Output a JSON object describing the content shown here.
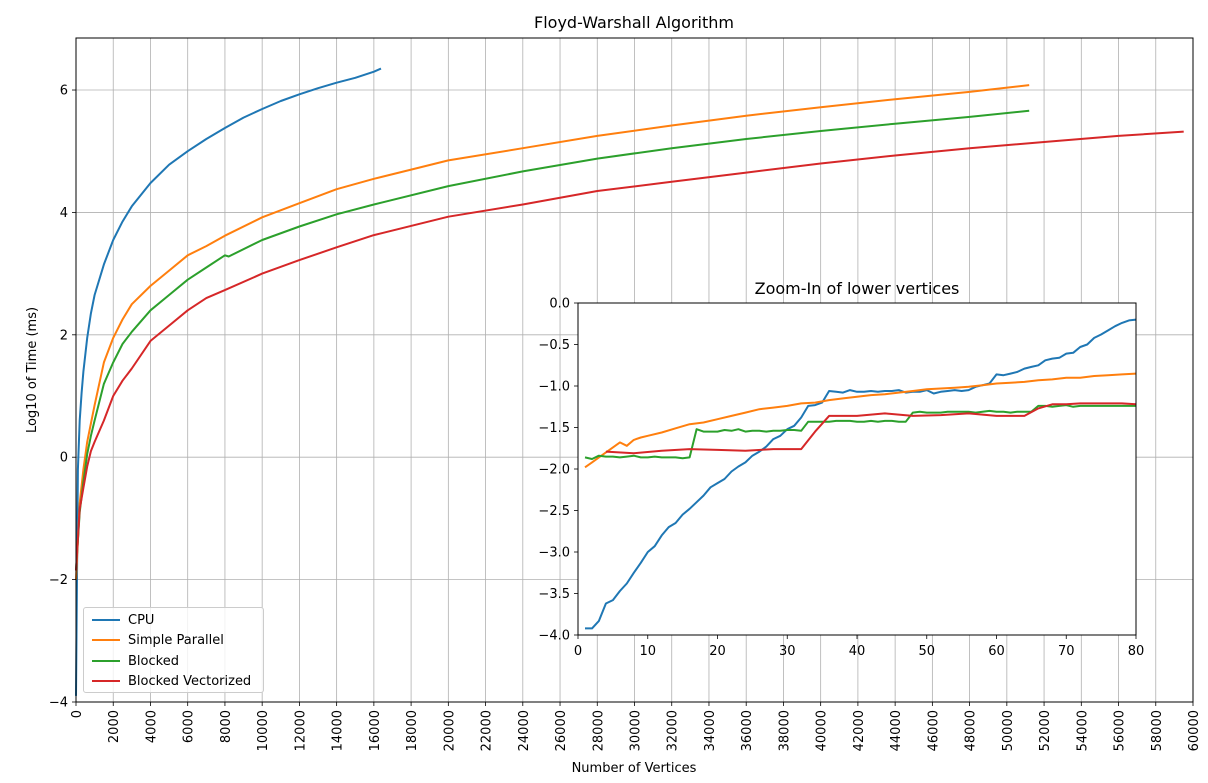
{
  "chart_data": [
    {
      "type": "line",
      "title": "Floyd-Warshall Algorithm",
      "xlabel": "Number of Vertices",
      "ylabel": "Log10 of Time (ms)",
      "xlim": [
        0,
        60000
      ],
      "ylim": [
        -4,
        6.85
      ],
      "x_ticks": [
        "0",
        "2000",
        "4000",
        "6000",
        "8000",
        "10000",
        "12000",
        "14000",
        "16000",
        "18000",
        "20000",
        "22000",
        "24000",
        "26000",
        "28000",
        "30000",
        "32000",
        "34000",
        "36000",
        "38000",
        "40000",
        "42000",
        "44000",
        "46000",
        "48000",
        "50000",
        "52000",
        "54000",
        "56000",
        "58000",
        "60000"
      ],
      "y_ticks": [
        "−4",
        "−2",
        "0",
        "2",
        "4",
        "6"
      ],
      "grid": true,
      "legend_position": "lower-left",
      "series": [
        {
          "name": "CPU",
          "color": "#1f77b4",
          "x": [
            1,
            100,
            200,
            300,
            400,
            600,
            800,
            1000,
            1500,
            2000,
            2500,
            3000,
            4000,
            5000,
            6000,
            7000,
            8000,
            9000,
            10000,
            11000,
            12000,
            13000,
            14000,
            15000,
            16000,
            16384
          ],
          "y": [
            -3.9,
            -0.2,
            0.6,
            1.05,
            1.4,
            1.95,
            2.35,
            2.65,
            3.15,
            3.55,
            3.85,
            4.1,
            4.48,
            4.78,
            5.0,
            5.2,
            5.38,
            5.55,
            5.69,
            5.82,
            5.93,
            6.03,
            6.12,
            6.2,
            6.3,
            6.35
          ]
        },
        {
          "name": "Simple Parallel",
          "color": "#ff7f0e",
          "x": [
            1,
            200,
            400,
            600,
            800,
            1000,
            1500,
            2000,
            2500,
            3000,
            4000,
            5000,
            6000,
            7000,
            8000,
            10000,
            12000,
            14000,
            16000,
            18000,
            20000,
            24000,
            28000,
            32000,
            36000,
            40000,
            44000,
            48000,
            51200
          ],
          "y": [
            -2.0,
            -0.75,
            -0.2,
            0.25,
            0.55,
            0.85,
            1.55,
            1.95,
            2.25,
            2.5,
            2.8,
            3.05,
            3.3,
            3.45,
            3.62,
            3.92,
            4.15,
            4.38,
            4.55,
            4.7,
            4.85,
            5.05,
            5.25,
            5.42,
            5.58,
            5.72,
            5.85,
            5.97,
            6.08
          ]
        },
        {
          "name": "Blocked",
          "color": "#2ca02c",
          "x": [
            1,
            200,
            400,
            600,
            800,
            1000,
            1500,
            2000,
            2500,
            3000,
            4000,
            5000,
            6000,
            7000,
            8000,
            8200,
            10000,
            12000,
            14000,
            16000,
            20000,
            24000,
            28000,
            32000,
            36000,
            40000,
            44000,
            48000,
            51200
          ],
          "y": [
            -1.85,
            -0.9,
            -0.4,
            0.05,
            0.35,
            0.6,
            1.2,
            1.55,
            1.85,
            2.05,
            2.4,
            2.65,
            2.9,
            3.1,
            3.3,
            3.28,
            3.55,
            3.77,
            3.97,
            4.13,
            4.43,
            4.67,
            4.88,
            5.05,
            5.2,
            5.33,
            5.45,
            5.56,
            5.66
          ]
        },
        {
          "name": "Blocked Vectorized",
          "color": "#d62728",
          "x": [
            1,
            200,
            400,
            600,
            800,
            1000,
            1500,
            2000,
            2500,
            3000,
            4000,
            5000,
            6000,
            7000,
            8000,
            10000,
            12000,
            14000,
            16000,
            20000,
            24000,
            28000,
            32000,
            36000,
            40000,
            44000,
            48000,
            52000,
            56000,
            59500
          ],
          "y": [
            -1.85,
            -0.85,
            -0.5,
            -0.15,
            0.1,
            0.25,
            0.6,
            1.0,
            1.25,
            1.45,
            1.9,
            2.15,
            2.4,
            2.6,
            2.73,
            3.0,
            3.22,
            3.43,
            3.63,
            3.93,
            4.13,
            4.35,
            4.5,
            4.65,
            4.8,
            4.93,
            5.05,
            5.15,
            5.25,
            5.32
          ]
        }
      ]
    },
    {
      "type": "line",
      "title": "Zoom-In of lower vertices",
      "xlim": [
        0,
        80
      ],
      "ylim": [
        -4.0,
        0.0
      ],
      "x_ticks": [
        "0",
        "10",
        "20",
        "30",
        "40",
        "50",
        "60",
        "70",
        "80"
      ],
      "y_ticks": [
        "0.0",
        "−0.5",
        "−1.0",
        "−1.5",
        "−2.0",
        "−2.5",
        "−3.0",
        "−3.5",
        "−4.0"
      ],
      "series": [
        {
          "name": "CPU",
          "color": "#1f77b4",
          "x": [
            1,
            2,
            3,
            4,
            5,
            6,
            7,
            8,
            9,
            10,
            11,
            12,
            13,
            14,
            15,
            16,
            17,
            18,
            19,
            20,
            21,
            22,
            23,
            24,
            25,
            26,
            27,
            28,
            29,
            30,
            31,
            32,
            33,
            34,
            35,
            36,
            37,
            38,
            39,
            40,
            41,
            42,
            43,
            44,
            45,
            46,
            47,
            48,
            49,
            50,
            51,
            52,
            53,
            54,
            55,
            56,
            57,
            58,
            59,
            60,
            61,
            62,
            63,
            64,
            65,
            66,
            67,
            68,
            69,
            70,
            71,
            72,
            73,
            74,
            75,
            76,
            77,
            78,
            79,
            80
          ],
          "y": [
            -3.92,
            -3.92,
            -3.83,
            -3.62,
            -3.58,
            -3.47,
            -3.38,
            -3.25,
            -3.13,
            -3.0,
            -2.93,
            -2.8,
            -2.7,
            -2.65,
            -2.55,
            -2.48,
            -2.4,
            -2.32,
            -2.22,
            -2.17,
            -2.12,
            -2.03,
            -1.97,
            -1.92,
            -1.84,
            -1.79,
            -1.73,
            -1.64,
            -1.6,
            -1.52,
            -1.48,
            -1.38,
            -1.24,
            -1.23,
            -1.2,
            -1.06,
            -1.07,
            -1.08,
            -1.05,
            -1.07,
            -1.07,
            -1.06,
            -1.07,
            -1.06,
            -1.06,
            -1.05,
            -1.08,
            -1.07,
            -1.07,
            -1.05,
            -1.09,
            -1.07,
            -1.06,
            -1.05,
            -1.06,
            -1.05,
            -1.01,
            -0.99,
            -0.97,
            -0.86,
            -0.87,
            -0.85,
            -0.83,
            -0.79,
            -0.77,
            -0.75,
            -0.69,
            -0.67,
            -0.66,
            -0.61,
            -0.6,
            -0.53,
            -0.5,
            -0.42,
            -0.38,
            -0.33,
            -0.28,
            -0.24,
            -0.21,
            -0.2
          ]
        },
        {
          "name": "Simple Parallel",
          "color": "#ff7f0e",
          "x": [
            1,
            2,
            3,
            4,
            5,
            6,
            7,
            8,
            9,
            10,
            12,
            14,
            16,
            18,
            20,
            22,
            24,
            26,
            28,
            30,
            32,
            34,
            36,
            38,
            40,
            42,
            44,
            46,
            48,
            50,
            52,
            54,
            56,
            58,
            60,
            62,
            64,
            66,
            68,
            70,
            72,
            74,
            76,
            78,
            80
          ],
          "y": [
            -1.98,
            -1.92,
            -1.86,
            -1.8,
            -1.74,
            -1.68,
            -1.72,
            -1.65,
            -1.62,
            -1.6,
            -1.56,
            -1.51,
            -1.46,
            -1.44,
            -1.4,
            -1.36,
            -1.32,
            -1.28,
            -1.26,
            -1.24,
            -1.21,
            -1.2,
            -1.17,
            -1.15,
            -1.13,
            -1.11,
            -1.1,
            -1.08,
            -1.06,
            -1.04,
            -1.03,
            -1.02,
            -1.01,
            -0.99,
            -0.97,
            -0.96,
            -0.95,
            -0.93,
            -0.92,
            -0.9,
            -0.9,
            -0.88,
            -0.87,
            -0.86,
            -0.85
          ]
        },
        {
          "name": "Blocked",
          "color": "#2ca02c",
          "x": [
            1,
            2,
            3,
            4,
            5,
            6,
            7,
            8,
            9,
            10,
            11,
            12,
            13,
            14,
            15,
            16,
            17,
            18,
            19,
            20,
            21,
            22,
            23,
            24,
            25,
            26,
            27,
            28,
            29,
            30,
            31,
            32,
            33,
            34,
            35,
            36,
            37,
            38,
            39,
            40,
            41,
            42,
            43,
            44,
            45,
            46,
            47,
            48,
            49,
            50,
            51,
            52,
            53,
            54,
            55,
            56,
            57,
            58,
            59,
            60,
            61,
            62,
            63,
            64,
            65,
            66,
            67,
            68,
            69,
            70,
            71,
            72,
            73,
            74,
            75,
            76,
            77,
            78,
            79,
            80
          ],
          "y": [
            -1.86,
            -1.88,
            -1.84,
            -1.85,
            -1.85,
            -1.86,
            -1.85,
            -1.84,
            -1.86,
            -1.86,
            -1.85,
            -1.86,
            -1.86,
            -1.86,
            -1.87,
            -1.86,
            -1.52,
            -1.55,
            -1.55,
            -1.55,
            -1.53,
            -1.54,
            -1.52,
            -1.55,
            -1.54,
            -1.54,
            -1.55,
            -1.54,
            -1.54,
            -1.53,
            -1.53,
            -1.54,
            -1.43,
            -1.43,
            -1.43,
            -1.43,
            -1.42,
            -1.42,
            -1.42,
            -1.43,
            -1.43,
            -1.42,
            -1.43,
            -1.42,
            -1.42,
            -1.43,
            -1.43,
            -1.32,
            -1.31,
            -1.32,
            -1.32,
            -1.32,
            -1.31,
            -1.31,
            -1.31,
            -1.31,
            -1.32,
            -1.31,
            -1.3,
            -1.31,
            -1.31,
            -1.32,
            -1.31,
            -1.31,
            -1.31,
            -1.24,
            -1.24,
            -1.25,
            -1.24,
            -1.23,
            -1.25,
            -1.24,
            -1.24,
            -1.24,
            -1.24,
            -1.24,
            -1.24,
            -1.24,
            -1.24,
            -1.24
          ]
        },
        {
          "name": "Blocked Vectorized",
          "color": "#d62728",
          "x": [
            4,
            8,
            12,
            16,
            20,
            24,
            28,
            32,
            34,
            36,
            40,
            44,
            48,
            52,
            56,
            60,
            64,
            66,
            68,
            70,
            72,
            74,
            76,
            78,
            80
          ],
          "y": [
            -1.79,
            -1.81,
            -1.78,
            -1.76,
            -1.77,
            -1.78,
            -1.76,
            -1.76,
            -1.55,
            -1.36,
            -1.36,
            -1.33,
            -1.36,
            -1.35,
            -1.33,
            -1.36,
            -1.36,
            -1.27,
            -1.22,
            -1.22,
            -1.21,
            -1.21,
            -1.21,
            -1.21,
            -1.22
          ]
        }
      ]
    }
  ]
}
